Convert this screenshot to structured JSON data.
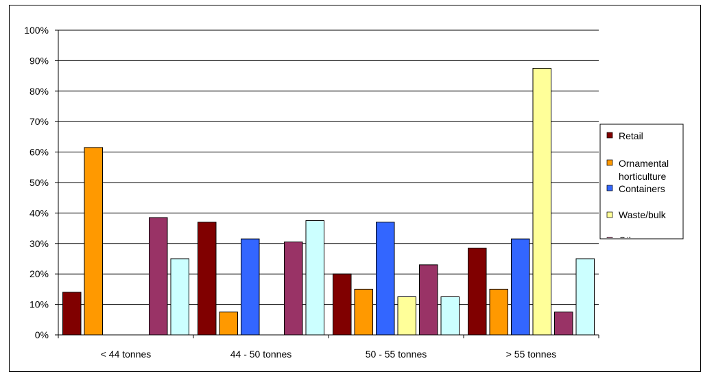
{
  "chart_data": {
    "type": "bar",
    "categories": [
      "< 44 tonnes",
      "44 - 50 tonnes",
      "50 - 55 tonnes",
      "> 55 tonnes"
    ],
    "series": [
      {
        "name": "Retail",
        "color": "#800000",
        "values": [
          14,
          37,
          20,
          28.5
        ]
      },
      {
        "name": "Ornamental horticulture",
        "color": "#FF9900",
        "values": [
          61.5,
          7.5,
          15,
          15
        ]
      },
      {
        "name": "Containers",
        "color": "#3366FF",
        "values": [
          0,
          31.5,
          37,
          31.5
        ]
      },
      {
        "name": "Waste/bulk",
        "color": "#FFFF99",
        "values": [
          0,
          0,
          12.5,
          87.5
        ]
      },
      {
        "name": "",
        "color": "#993366",
        "values": [
          38.5,
          30.5,
          23,
          7.5
        ]
      },
      {
        "name": "",
        "color": "#CCFFFF",
        "values": [
          25,
          37.5,
          12.5,
          25
        ]
      }
    ],
    "ylim": [
      0,
      100
    ],
    "yticks": [
      "0%",
      "10%",
      "20%",
      "30%",
      "40%",
      "50%",
      "60%",
      "70%",
      "80%",
      "90%",
      "100%"
    ],
    "grid": true,
    "legend_position": "right",
    "legend_labels": [
      "Retail",
      "Ornamental horticulture",
      "Containers",
      "Waste/bulk",
      "Oth..."
    ]
  }
}
